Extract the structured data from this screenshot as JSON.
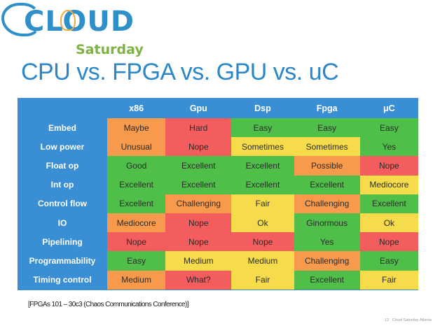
{
  "logo": {
    "brand": "CLOUD",
    "sub": "Saturday"
  },
  "slide": {
    "title": "CPU vs. FPGA vs. GPU vs. uC",
    "citation": "[FPGAs 101 – 30c3 (Chaos Communications Conference)]",
    "footer_page": "12",
    "footer_text": "Cloud Saturday Atlanta"
  },
  "table": {
    "headers": [
      "x86",
      "Gpu",
      "Dsp",
      "Fpga",
      "μC"
    ],
    "rows": [
      {
        "label": "Embed",
        "cells": [
          {
            "text": "Maybe",
            "color": "orange"
          },
          {
            "text": "Hard",
            "color": "red"
          },
          {
            "text": "Easy",
            "color": "green"
          },
          {
            "text": "Easy",
            "color": "green"
          },
          {
            "text": "Easy",
            "color": "green"
          }
        ]
      },
      {
        "label": "Low power",
        "cells": [
          {
            "text": "Unusual",
            "color": "orange"
          },
          {
            "text": "Nope",
            "color": "red"
          },
          {
            "text": "Sometimes",
            "color": "yellow"
          },
          {
            "text": "Sometimes",
            "color": "yellow"
          },
          {
            "text": "Yes",
            "color": "green"
          }
        ]
      },
      {
        "label": "Float op",
        "cells": [
          {
            "text": "Good",
            "color": "green"
          },
          {
            "text": "Excellent",
            "color": "green"
          },
          {
            "text": "Excellent",
            "color": "green"
          },
          {
            "text": "Possible",
            "color": "orange"
          },
          {
            "text": "Nope",
            "color": "red"
          }
        ]
      },
      {
        "label": "Int op",
        "cells": [
          {
            "text": "Excellent",
            "color": "green"
          },
          {
            "text": "Excellent",
            "color": "green"
          },
          {
            "text": "Excellent",
            "color": "green"
          },
          {
            "text": "Excellent",
            "color": "green"
          },
          {
            "text": "Mediocore",
            "color": "yellow"
          }
        ]
      },
      {
        "label": "Control flow",
        "cells": [
          {
            "text": "Excellent",
            "color": "green"
          },
          {
            "text": "Challenging",
            "color": "orange"
          },
          {
            "text": "Fair",
            "color": "yellow"
          },
          {
            "text": "Challenging",
            "color": "orange"
          },
          {
            "text": "Excellent",
            "color": "green"
          }
        ]
      },
      {
        "label": "IO",
        "cells": [
          {
            "text": "Mediocore",
            "color": "orange"
          },
          {
            "text": "Nope",
            "color": "red"
          },
          {
            "text": "Ok",
            "color": "yellow"
          },
          {
            "text": "Ginormous",
            "color": "green"
          },
          {
            "text": "Ok",
            "color": "yellow"
          }
        ]
      },
      {
        "label": "Pipelining",
        "cells": [
          {
            "text": "Nope",
            "color": "red"
          },
          {
            "text": "Nope",
            "color": "red"
          },
          {
            "text": "Nope",
            "color": "red"
          },
          {
            "text": "Yes",
            "color": "green"
          },
          {
            "text": "Nope",
            "color": "red"
          }
        ]
      },
      {
        "label": "Programmability",
        "cells": [
          {
            "text": "Easy",
            "color": "green"
          },
          {
            "text": "Medium",
            "color": "yellow"
          },
          {
            "text": "Medium",
            "color": "yellow"
          },
          {
            "text": "Challenging",
            "color": "orange"
          },
          {
            "text": "Easy",
            "color": "green"
          }
        ]
      },
      {
        "label": "Timing control",
        "cells": [
          {
            "text": "Medium",
            "color": "orange"
          },
          {
            "text": "What?",
            "color": "red"
          },
          {
            "text": "Fair",
            "color": "yellow"
          },
          {
            "text": "Excellent",
            "color": "green"
          },
          {
            "text": "Fair",
            "color": "yellow"
          }
        ]
      }
    ]
  },
  "colors": {
    "header_bg": "#3a8fd4",
    "green": "#4fbf4a",
    "orange": "#f79a4b",
    "red": "#f45d5d",
    "yellow": "#f6dc4a",
    "title": "#2c87c8"
  }
}
